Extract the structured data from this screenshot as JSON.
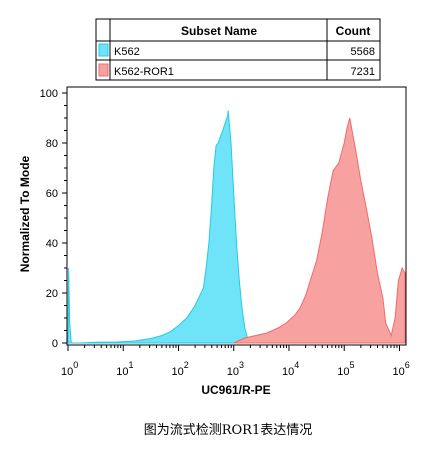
{
  "legend_table": {
    "headers": {
      "name": "Subset Name",
      "count": "Count"
    },
    "rows": [
      {
        "name": "K562",
        "count": "5568",
        "color": "#6fe3f7"
      },
      {
        "name": "K562-ROR1",
        "count": "7231",
        "color": "#f7a1a1"
      }
    ]
  },
  "caption": "图为流式检测ROR1表达情况",
  "chart_data": {
    "type": "area",
    "xlabel": "UC961/R-PE",
    "ylabel": "Normalized To Mode",
    "x_scale": "log10",
    "xlim": [
      0,
      6.1
    ],
    "ylim": [
      0,
      102
    ],
    "x_ticks": [
      {
        "exp": 0,
        "base": "10",
        "sup": "0"
      },
      {
        "exp": 1,
        "base": "10",
        "sup": "1"
      },
      {
        "exp": 2,
        "base": "10",
        "sup": "2"
      },
      {
        "exp": 3,
        "base": "10",
        "sup": "3"
      },
      {
        "exp": 4,
        "base": "10",
        "sup": "4"
      },
      {
        "exp": 5,
        "base": "10",
        "sup": "5"
      },
      {
        "exp": 6,
        "base": "10",
        "sup": "6"
      }
    ],
    "y_ticks": [
      "0",
      "20",
      "40",
      "60",
      "80",
      "100"
    ],
    "grid": false,
    "series": [
      {
        "name": "K562",
        "color": "#6fe3f7",
        "stroke": "#27c9e6",
        "points": [
          [
            0.0,
            0
          ],
          [
            0.01,
            30
          ],
          [
            0.03,
            8
          ],
          [
            0.06,
            0
          ],
          [
            0.2,
            0
          ],
          [
            0.5,
            0.3
          ],
          [
            0.9,
            0.4
          ],
          [
            1.2,
            0.8
          ],
          [
            1.5,
            1.8
          ],
          [
            1.7,
            3
          ],
          [
            1.85,
            4.5
          ],
          [
            2.0,
            7
          ],
          [
            2.15,
            10
          ],
          [
            2.3,
            15
          ],
          [
            2.45,
            22
          ],
          [
            2.5,
            30
          ],
          [
            2.55,
            40
          ],
          [
            2.6,
            55
          ],
          [
            2.64,
            70
          ],
          [
            2.68,
            79
          ],
          [
            2.72,
            80
          ],
          [
            2.75,
            82
          ],
          [
            2.8,
            85
          ],
          [
            2.86,
            89
          ],
          [
            2.89,
            91
          ],
          [
            2.9,
            93
          ],
          [
            2.95,
            80
          ],
          [
            3.0,
            60
          ],
          [
            3.05,
            40
          ],
          [
            3.1,
            25
          ],
          [
            3.15,
            14
          ],
          [
            3.2,
            6
          ],
          [
            3.25,
            2
          ],
          [
            3.35,
            0.5
          ],
          [
            3.5,
            0
          ]
        ]
      },
      {
        "name": "K562-ROR1",
        "color": "#f7a1a1",
        "stroke": "#ef6c6c",
        "points": [
          [
            3.0,
            0
          ],
          [
            3.2,
            2
          ],
          [
            3.4,
            3
          ],
          [
            3.6,
            4
          ],
          [
            3.8,
            6
          ],
          [
            3.95,
            8
          ],
          [
            4.1,
            11
          ],
          [
            4.2,
            14
          ],
          [
            4.3,
            19
          ],
          [
            4.4,
            26
          ],
          [
            4.5,
            33
          ],
          [
            4.6,
            44
          ],
          [
            4.7,
            58
          ],
          [
            4.8,
            69
          ],
          [
            4.9,
            72
          ],
          [
            4.95,
            76
          ],
          [
            5.0,
            80
          ],
          [
            5.05,
            86
          ],
          [
            5.1,
            90
          ],
          [
            5.15,
            84
          ],
          [
            5.2,
            78
          ],
          [
            5.3,
            65
          ],
          [
            5.4,
            54
          ],
          [
            5.5,
            42
          ],
          [
            5.6,
            28
          ],
          [
            5.7,
            18
          ],
          [
            5.75,
            8
          ],
          [
            5.85,
            3
          ],
          [
            5.92,
            10
          ],
          [
            5.98,
            25
          ],
          [
            6.05,
            30
          ],
          [
            6.1,
            28
          ],
          [
            6.1,
            0
          ]
        ]
      }
    ]
  }
}
